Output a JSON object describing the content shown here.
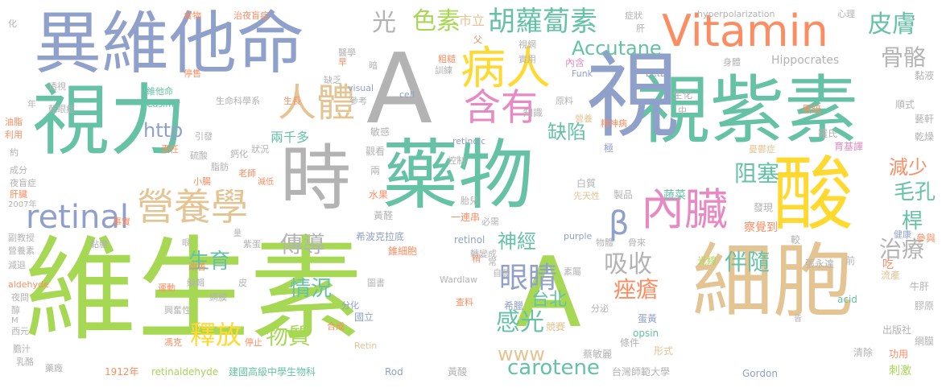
{
  "colors": {
    "background": "#ffffff",
    "palette": {
      "blue": "#8fa0cb",
      "green": "#66c2a5",
      "lime": "#a6d854",
      "yellow": "#ffd92f",
      "tan": "#e5c494",
      "orange": "#fc8d62",
      "pink": "#e78ac3",
      "gray": "#b3b3b3"
    }
  },
  "words": [
    {
      "text": "維生素",
      "color": "#a6d854"
    },
    {
      "text": "視紫素",
      "color": "#66c2a5"
    },
    {
      "text": "A",
      "color": "#b3b3b3"
    },
    {
      "text": "A",
      "color": "#a6d854"
    },
    {
      "text": "異維他命",
      "color": "#8fa0cb"
    },
    {
      "text": "視力",
      "color": "#66c2a5"
    },
    {
      "text": "藥物",
      "color": "#66c2a5"
    },
    {
      "text": "細胞",
      "color": "#e5c494"
    },
    {
      "text": "視",
      "color": "#8fa0cb"
    },
    {
      "text": "時",
      "color": "#b3b3b3"
    },
    {
      "text": "酸",
      "color": "#ffd92f"
    },
    {
      "text": "Vitamin",
      "color": "#fc8d62"
    },
    {
      "text": "病人",
      "color": "#ffd92f"
    },
    {
      "text": "營養學",
      "color": "#e5c494"
    },
    {
      "text": "人體",
      "color": "#e5c494"
    },
    {
      "text": "含有",
      "color": "#e78ac3"
    },
    {
      "text": "β",
      "color": "#8fa0cb"
    },
    {
      "text": "內臟",
      "color": "#e78ac3"
    },
    {
      "text": "retinal",
      "color": "#8fa0cb"
    },
    {
      "text": "胡蘿蔔素",
      "color": "#66c2a5"
    },
    {
      "text": "色素",
      "color": "#a6d854"
    },
    {
      "text": "carotene",
      "color": "#66c2a5"
    },
    {
      "text": "皮膚",
      "color": "#66c2a5"
    },
    {
      "text": "骨骼",
      "color": "#b3b3b3"
    },
    {
      "text": "減少",
      "color": "#fc8d62"
    },
    {
      "text": "阻塞",
      "color": "#66c2a5"
    },
    {
      "text": "毛孔",
      "color": "#66c2a5"
    },
    {
      "text": "桿",
      "color": "#66c2a5"
    },
    {
      "text": "治療",
      "color": "#b3b3b3"
    },
    {
      "text": "釋放",
      "color": "#ffd92f"
    },
    {
      "text": "傳導",
      "color": "#b3b3b3"
    },
    {
      "text": "生育",
      "color": "#66c2a5"
    },
    {
      "text": "情況",
      "color": "#66c2a5"
    },
    {
      "text": "物質",
      "color": "#a6d854"
    },
    {
      "text": "眼睛",
      "color": "#8fa0cb"
    },
    {
      "text": "吸收",
      "color": "#b3b3b3"
    },
    {
      "text": "伴隨",
      "color": "#66c2a5"
    },
    {
      "text": "痤瘡",
      "color": "#fc8d62"
    },
    {
      "text": "神經",
      "color": "#66c2a5"
    },
    {
      "text": "感光",
      "color": "#66c2a5"
    },
    {
      "text": "缺陷",
      "color": "#66c2a5"
    },
    {
      "text": "Accutane",
      "color": "#66c2a5"
    },
    {
      "text": "光",
      "color": "#b3b3b3"
    },
    {
      "text": "http",
      "color": "#8fa0cb"
    },
    {
      "text": "www",
      "color": "#e5c494"
    },
    {
      "text": "台北",
      "color": "#66c2a5"
    },
    {
      "text": "市立",
      "color": "#e5c494"
    },
    {
      "text": "兩千多",
      "color": "#66c2a5"
    },
    {
      "text": "hyperpolarization",
      "color": "#b3b3b3"
    },
    {
      "text": "Hippocrates",
      "color": "#b3b3b3"
    },
    {
      "text": "台灣師範大學",
      "color": "#b3b3b3"
    },
    {
      "text": "建國高級中學生物科",
      "color": "#66c2a5"
    },
    {
      "text": "retinaldehyde",
      "color": "#a6d854"
    },
    {
      "text": "1912年",
      "color": "#fc8d62"
    },
    {
      "text": "Rod",
      "color": "#8fa0cb"
    },
    {
      "text": "黃酸",
      "color": "#b3b3b3"
    },
    {
      "text": "Gordon",
      "color": "#8fa0cb"
    },
    {
      "text": "清除",
      "color": "#b3b3b3"
    },
    {
      "text": "刺激",
      "color": "#a6d854"
    },
    {
      "text": "功用",
      "color": "#fc8d62"
    },
    {
      "text": "出版社",
      "color": "#b3b3b3"
    },
    {
      "text": "網膜",
      "color": "#b3b3b3"
    },
    {
      "text": "膠原",
      "color": "#b3b3b3"
    },
    {
      "text": "牛肝",
      "color": "#b3b3b3"
    },
    {
      "text": "流產",
      "color": "#e5c494"
    },
    {
      "text": "參與",
      "color": "#fc8d62"
    },
    {
      "text": "健康",
      "color": "#8fa0cb"
    },
    {
      "text": "acid",
      "color": "#66c2a5"
    },
    {
      "text": "opsin",
      "color": "#66c2a5"
    },
    {
      "text": "蛋黃",
      "color": "#8fa0cb"
    },
    {
      "text": "形式",
      "color": "#e5c494"
    },
    {
      "text": "條件",
      "color": "#b3b3b3"
    },
    {
      "text": "蔡敏麗",
      "color": "#b3b3b3"
    },
    {
      "text": "分泌",
      "color": "#b3b3b3"
    },
    {
      "text": "希臘",
      "color": "#8fa0cb"
    },
    {
      "text": "競賽",
      "color": "#e5c494"
    },
    {
      "text": "素屬",
      "color": "#b3b3b3"
    },
    {
      "text": "自發",
      "color": "#b3b3b3"
    },
    {
      "text": "Wardlaw",
      "color": "#b3b3b3"
    },
    {
      "text": "張永達",
      "color": "#b3b3b3"
    },
    {
      "text": "光線",
      "color": "#a6d854"
    },
    {
      "text": "前",
      "color": "#b3b3b3"
    },
    {
      "text": "吃",
      "color": "#fc8d62"
    },
    {
      "text": "物體",
      "color": "#b3b3b3"
    },
    {
      "text": "骨來",
      "color": "#b3b3b3"
    },
    {
      "text": "察覺到",
      "color": "#fc8d62"
    },
    {
      "text": "較",
      "color": "#b3b3b3"
    },
    {
      "text": "蔬菜",
      "color": "#66c2a5"
    },
    {
      "text": "製品",
      "color": "#b3b3b3"
    },
    {
      "text": "白質",
      "color": "#b3b3b3"
    },
    {
      "text": "先天性",
      "color": "#e5c494"
    },
    {
      "text": "發現",
      "color": "#b3b3b3"
    },
    {
      "text": "purple",
      "color": "#8fa0cb"
    },
    {
      "text": "retinol",
      "color": "#8fa0cb"
    },
    {
      "text": "一連串",
      "color": "#fc8d62"
    },
    {
      "text": "水果",
      "color": "#fc8d62"
    },
    {
      "text": "黃醛",
      "color": "#b3b3b3"
    },
    {
      "text": "希波克拉底",
      "color": "#8fa0cb"
    },
    {
      "text": "錐細胞",
      "color": "#fc8d62"
    },
    {
      "text": "稍",
      "color": "#fc8d62"
    },
    {
      "text": "常",
      "color": "#b3b3b3"
    },
    {
      "text": "國立",
      "color": "#8fa0cb"
    },
    {
      "text": "圖書",
      "color": "#b3b3b3"
    },
    {
      "text": "合成",
      "color": "#fc8d62"
    },
    {
      "text": "分化",
      "color": "#8fa0cb"
    },
    {
      "text": "查料",
      "color": "#fc8d62"
    },
    {
      "text": "Retin",
      "color": "#e5c494"
    },
    {
      "text": "胎兒",
      "color": "#b3b3b3"
    },
    {
      "text": "必需",
      "color": "#b3b3b3"
    },
    {
      "text": "轉變成",
      "color": "#b3b3b3"
    },
    {
      "text": "控制",
      "color": "#b3b3b3"
    },
    {
      "text": "觀看",
      "color": "#b3b3b3"
    },
    {
      "text": "兩",
      "color": "#b3b3b3"
    },
    {
      "text": "敏感",
      "color": "#b3b3b3"
    },
    {
      "text": "retinoic",
      "color": "#8fa0cb"
    },
    {
      "text": "知識",
      "color": "#b3b3b3"
    },
    {
      "text": "營養",
      "color": "#e5c494"
    },
    {
      "text": "中",
      "color": "#b3b3b3"
    },
    {
      "text": "生化",
      "color": "#b3b3b3"
    },
    {
      "text": "精神病",
      "color": "#fc8d62"
    },
    {
      "text": "極",
      "color": "#8fa0cb"
    },
    {
      "text": "黑暗",
      "color": "#fc8d62"
    },
    {
      "text": "憂鬱症",
      "color": "#e5c494"
    },
    {
      "text": "羅氏",
      "color": "#b3b3b3"
    },
    {
      "text": "育基譯",
      "color": "#e78ac3"
    },
    {
      "text": "乾燥",
      "color": "#b3b3b3"
    },
    {
      "text": "藝軒",
      "color": "#b3b3b3"
    },
    {
      "text": "順式",
      "color": "#b3b3b3"
    },
    {
      "text": "黏液",
      "color": "#b3b3b3"
    },
    {
      "text": "身體",
      "color": "#b3b3b3"
    },
    {
      "text": "心理",
      "color": "#b3b3b3"
    },
    {
      "text": "beta",
      "color": "#8fa0cb"
    },
    {
      "text": "皮膚",
      "color": "#fc8d62"
    },
    {
      "text": "Funk",
      "color": "#8fa0cb"
    },
    {
      "text": "內含",
      "color": "#e78ac3"
    },
    {
      "text": "原料",
      "color": "#b3b3b3"
    },
    {
      "text": "實用",
      "color": "#b3b3b3"
    },
    {
      "text": "視網",
      "color": "#b3b3b3"
    },
    {
      "text": "症狀",
      "color": "#b3b3b3"
    },
    {
      "text": "肝",
      "color": "#b3b3b3"
    },
    {
      "text": "父",
      "color": "#fc8d62"
    },
    {
      "text": "醫學",
      "color": "#b3b3b3"
    },
    {
      "text": "早",
      "color": "#fc8d62"
    },
    {
      "text": "粗糙",
      "color": "#fc8d62"
    },
    {
      "text": "訓練",
      "color": "#b3b3b3"
    },
    {
      "text": "暗",
      "color": "#b3b3b3"
    },
    {
      "text": "缺乏",
      "color": "#b3b3b3"
    },
    {
      "text": "cell",
      "color": "#8fa0cb"
    },
    {
      "text": "visual",
      "color": "#8fa0cb"
    },
    {
      "text": "參考",
      "color": "#b3b3b3"
    },
    {
      "text": "生長",
      "color": "#fc8d62"
    },
    {
      "text": "治夜盲症",
      "color": "#fc8d62"
    },
    {
      "text": "食物",
      "color": "#fc8d62"
    },
    {
      "text": "停售",
      "color": "#fc8d62"
    },
    {
      "text": "維他命",
      "color": "#66c2a5"
    },
    {
      "text": "Casimir",
      "color": "#66c2a5"
    },
    {
      "text": "生命科學系",
      "color": "#b3b3b3"
    },
    {
      "text": "透視",
      "color": "#b3b3b3"
    },
    {
      "text": "乾眼症",
      "color": "#b3b3b3"
    },
    {
      "text": "年",
      "color": "#b3b3b3"
    },
    {
      "text": "化",
      "color": "#b3b3b3"
    },
    {
      "text": "油脂",
      "color": "#fc8d62"
    },
    {
      "text": "利用",
      "color": "#fc8d62"
    },
    {
      "text": "約",
      "color": "#b3b3b3"
    },
    {
      "text": "成分",
      "color": "#b3b3b3"
    },
    {
      "text": "夜盲症",
      "color": "#b3b3b3"
    },
    {
      "text": "肝臟",
      "color": "#fc8d62"
    },
    {
      "text": "2007年",
      "color": "#b3b3b3"
    },
    {
      "text": "副教授",
      "color": "#b3b3b3"
    },
    {
      "text": "營養素",
      "color": "#b3b3b3"
    },
    {
      "text": "減退",
      "color": "#b3b3b3"
    },
    {
      "text": "aldehyde",
      "color": "#fc8d62"
    },
    {
      "text": "夜間",
      "color": "#b3b3b3"
    },
    {
      "text": "醇",
      "color": "#b3b3b3"
    },
    {
      "text": "西元",
      "color": "#b3b3b3"
    },
    {
      "text": "膽汁",
      "color": "#b3b3b3"
    },
    {
      "text": "乳酪",
      "color": "#b3b3b3"
    },
    {
      "text": "藥廠",
      "color": "#b3b3b3"
    },
    {
      "text": "責任",
      "color": "#fc8d62"
    },
    {
      "text": "引發",
      "color": "#b3b3b3"
    },
    {
      "text": "硫酸",
      "color": "#b3b3b3"
    },
    {
      "text": "鈣化",
      "color": "#b3b3b3"
    },
    {
      "text": "狀況",
      "color": "#b3b3b3"
    },
    {
      "text": "脂肪",
      "color": "#b3b3b3"
    },
    {
      "text": "老師",
      "color": "#fc8d62"
    },
    {
      "text": "減低",
      "color": "#fc8d62"
    },
    {
      "text": "小腸",
      "color": "#fc8d62"
    },
    {
      "text": "事實",
      "color": "#fc8d62"
    },
    {
      "text": "黏膜",
      "color": "#b3b3b3"
    },
    {
      "text": "紫蛋",
      "color": "#b3b3b3"
    },
    {
      "text": "改善",
      "color": "#fc8d62"
    },
    {
      "text": "運動",
      "color": "#fc8d62"
    },
    {
      "text": "編輯",
      "color": "#b3b3b3"
    },
    {
      "text": "皮",
      "color": "#b3b3b3"
    },
    {
      "text": "網膜",
      "color": "#b3b3b3"
    },
    {
      "text": "興奮性",
      "color": "#b3b3b3"
    },
    {
      "text": "馮克",
      "color": "#fc8d62"
    },
    {
      "text": "停止",
      "color": "#fc8d62"
    },
    {
      "text": "眼",
      "color": "#b3b3b3"
    },
    {
      "text": "M",
      "color": "#b3b3b3"
    },
    {
      "text": "量",
      "color": "#b3b3b3"
    },
    {
      "text": "皆",
      "color": "#b3b3b3"
    }
  ]
}
